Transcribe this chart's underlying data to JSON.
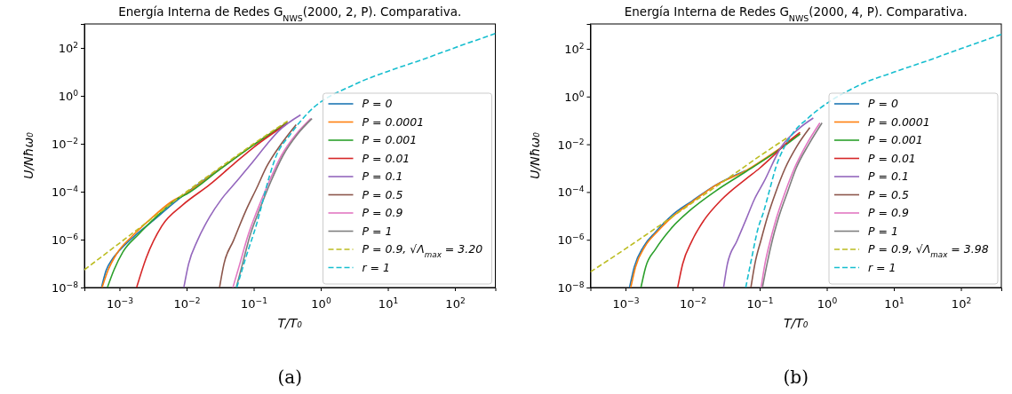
{
  "chart_data": [
    {
      "type": "line",
      "title": "Energía Interna de Redes G$_{NWS}$(2000, 2, P). Comparativa.",
      "xlabel": "T/T₀",
      "ylabel": "U/Nħω₀",
      "log": "xy",
      "grid": false,
      "legend": "right",
      "line_style": "solid",
      "marker": "none",
      "xlim": [
        0.0003,
        400
      ],
      "ylim": [
        1e-08,
        1000
      ],
      "xticks": [
        {
          "value": 0.001,
          "label": "10$^{−3}$"
        },
        {
          "value": 0.01,
          "label": "10$^{−2}$"
        },
        {
          "value": 0.1,
          "label": "10$^{−1}$"
        },
        {
          "value": 1,
          "label": "10$^{0}$"
        },
        {
          "value": 10,
          "label": "10$^{1}$"
        },
        {
          "value": 100,
          "label": "10$^{2}$"
        }
      ],
      "yticks": [
        {
          "value": 1e-08,
          "label": "10$^{−8}$"
        },
        {
          "value": 1e-06,
          "label": "10$^{−6}$"
        },
        {
          "value": 0.0001,
          "label": "10$^{−4}$"
        },
        {
          "value": 0.01,
          "label": "10$^{−2}$"
        },
        {
          "value": 1,
          "label": "10$^{0}$"
        },
        {
          "value": 100,
          "label": "10$^{2}$"
        }
      ],
      "annotations": [
        "(a)"
      ],
      "series": [
        {
          "name": "P = 0",
          "color": "#1f77b4",
          "x": [
            0.00054,
            0.00063,
            0.00079,
            0.001,
            0.0016,
            0.0032,
            0.0063,
            0.01,
            0.032
          ],
          "values": [
            1e-08,
            5e-08,
            1.6e-07,
            3.5e-07,
            1.26e-06,
            6.3e-06,
            3.2e-05,
            8.9e-05,
            0.00095
          ]
        },
        {
          "name": "P = 0.0001",
          "color": "#ff7f0e",
          "x": [
            0.00055,
            0.00068,
            0.00091,
            0.00155,
            0.0028,
            0.00575,
            0.01,
            0.032,
            0.1,
            0.32
          ],
          "values": [
            1e-08,
            5.5e-08,
            2.6e-07,
            1.4e-06,
            6.6e-06,
            3.6e-05,
            8.7e-05,
            0.00093,
            0.0091,
            0.079
          ]
        },
        {
          "name": "P = 0.001",
          "color": "#2ca02c",
          "x": [
            0.00066,
            0.00083,
            0.00112,
            0.0019,
            0.0035,
            0.0071,
            0.01,
            0.032,
            0.1,
            0.32
          ],
          "values": [
            1e-08,
            5.5e-08,
            3e-07,
            1.6e-06,
            8.7e-06,
            4.8e-05,
            7.9e-05,
            0.00089,
            0.0089,
            0.076
          ]
        },
        {
          "name": "P = 0.01",
          "color": "#d62728",
          "x": [
            0.0018,
            0.0025,
            0.0043,
            0.0087,
            0.022,
            0.05,
            0.1,
            0.32
          ],
          "values": [
            1e-08,
            1.7e-07,
            3.8e-06,
            2.75e-05,
            0.000195,
            0.0014,
            0.0071,
            0.071
          ]
        },
        {
          "name": "P = 0.1",
          "color": "#9467bd",
          "x": [
            0.0091,
            0.0107,
            0.0145,
            0.022,
            0.033,
            0.055,
            0.091,
            0.16,
            0.23,
            0.5
          ],
          "values": [
            1e-08,
            9.5e-08,
            9.1e-07,
            8.7e-06,
            4.8e-05,
            0.00026,
            0.0014,
            0.01,
            0.032,
            0.16
          ]
        },
        {
          "name": "P = 0.5",
          "color": "#8c564b",
          "x": [
            0.031,
            0.036,
            0.05,
            0.076,
            0.112,
            0.155,
            0.26,
            0.43
          ],
          "values": [
            1e-08,
            9.5e-08,
            9.1e-07,
            1.55e-05,
            0.00015,
            0.00107,
            0.0102,
            0.063
          ]
        },
        {
          "name": "P = 0.9",
          "color": "#e377c2",
          "x": [
            0.049,
            0.062,
            0.083,
            0.112,
            0.17,
            0.26,
            0.43,
            0.71
          ],
          "values": [
            1e-08,
            9.5e-08,
            1.6e-06,
            1.55e-05,
            0.00026,
            0.0033,
            0.025,
            0.112
          ]
        },
        {
          "name": "P = 1",
          "color": "#7f7f7f",
          "x": [
            0.055,
            0.068,
            0.089,
            0.12,
            0.18,
            0.275,
            0.45,
            0.74
          ],
          "values": [
            1e-08,
            9.5e-08,
            1.6e-06,
            1.55e-05,
            0.00026,
            0.0033,
            0.025,
            0.112
          ]
        },
        {
          "name": "P = 0.9, √Λ$_{max}$ = 3.20",
          "color": "#bcbd22",
          "line_style": "dashed",
          "x": [
            0.0003,
            0.001,
            0.0032,
            0.01,
            0.032,
            0.1,
            0.32
          ],
          "values": [
            5.5e-08,
            7.1e-07,
            8.5e-06,
            0.0001,
            0.00105,
            0.01,
            0.089
          ]
        },
        {
          "name": "r = 1",
          "color": "#17becf",
          "line_style": "dashed",
          "x": [
            0.056,
            0.076,
            0.112,
            0.17,
            0.21,
            0.35,
            0.63,
            3.2,
            10,
            32,
            100,
            400
          ],
          "values": [
            1e-08,
            1.7e-07,
            5e-06,
            0.0004,
            0.0025,
            0.024,
            0.18,
            3.0,
            10.5,
            32,
            102,
            400
          ]
        }
      ]
    },
    {
      "type": "line",
      "title": "Energía Interna de Redes G$_{NWS}$(2000, 4, P). Comparativa.",
      "xlabel": "T/T₀",
      "ylabel": "U/Nħω₀",
      "log": "xy",
      "grid": false,
      "legend": "right",
      "line_style": "solid",
      "marker": "none",
      "xlim": [
        0.0003,
        400
      ],
      "ylim": [
        1e-08,
        1100
      ],
      "xticks": [
        {
          "value": 0.001,
          "label": "10$^{−3}$"
        },
        {
          "value": 0.01,
          "label": "10$^{−2}$"
        },
        {
          "value": 0.1,
          "label": "10$^{−1}$"
        },
        {
          "value": 1,
          "label": "10$^{0}$"
        },
        {
          "value": 10,
          "label": "10$^{1}$"
        },
        {
          "value": 100,
          "label": "10$^{2}$"
        }
      ],
      "yticks": [
        {
          "value": 1e-08,
          "label": "10$^{−8}$"
        },
        {
          "value": 1e-06,
          "label": "10$^{−6}$"
        },
        {
          "value": 0.0001,
          "label": "10$^{−4}$"
        },
        {
          "value": 0.01,
          "label": "10$^{−2}$"
        },
        {
          "value": 1,
          "label": "10$^{0}$"
        },
        {
          "value": 100,
          "label": "10$^{2}$"
        }
      ],
      "annotations": [
        "(b)"
      ],
      "series": [
        {
          "name": "P = 0",
          "color": "#1f77b4",
          "x": [
            0.00115,
            0.00135,
            0.00186,
            0.0028,
            0.0052,
            0.0098,
            0.022,
            0.062
          ],
          "values": [
            1e-08,
            7.2e-08,
            5.2e-07,
            2.1e-06,
            1.2e-05,
            4.2e-05,
            0.000195,
            0.00079
          ]
        },
        {
          "name": "P = 0.0001",
          "color": "#ff7f0e",
          "x": [
            0.0012,
            0.00141,
            0.00195,
            0.00295,
            0.0054,
            0.01,
            0.022,
            0.062,
            0.17,
            0.4
          ],
          "values": [
            1e-08,
            7.2e-08,
            5.2e-07,
            2.1e-06,
            1.1e-05,
            4e-05,
            0.00019,
            0.00078,
            0.0049,
            0.028
          ]
        },
        {
          "name": "P = 0.001",
          "color": "#2ca02c",
          "x": [
            0.0017,
            0.002,
            0.0028,
            0.0047,
            0.0098,
            0.022,
            0.062,
            0.17,
            0.4
          ],
          "values": [
            1e-08,
            7.2e-08,
            4e-07,
            2.8e-06,
            2e-05,
            0.00011,
            0.00071,
            0.0045,
            0.027
          ]
        },
        {
          "name": "P = 0.01",
          "color": "#d62728",
          "x": [
            0.006,
            0.0071,
            0.0098,
            0.0148,
            0.027,
            0.062,
            0.1,
            0.158,
            0.25,
            0.4
          ],
          "values": [
            1e-08,
            9.5e-08,
            9.1e-07,
            6.6e-06,
            4.8e-05,
            0.00035,
            0.001,
            0.0032,
            0.0112,
            0.032
          ]
        },
        {
          "name": "P = 0.1",
          "color": "#9467bd",
          "x": [
            0.029,
            0.033,
            0.046,
            0.062,
            0.083,
            0.115,
            0.21,
            0.4,
            0.63
          ],
          "values": [
            1e-08,
            9.5e-08,
            9.1e-07,
            6.6e-06,
            4.8e-05,
            0.00026,
            0.0078,
            0.05,
            0.126
          ]
        },
        {
          "name": "P = 0.5",
          "color": "#8c564b",
          "x": [
            0.074,
            0.085,
            0.105,
            0.132,
            0.174,
            0.24,
            0.355,
            0.56
          ],
          "values": [
            1e-08,
            1e-07,
            1e-06,
            1e-05,
            0.0001,
            0.001,
            0.0079,
            0.05
          ]
        },
        {
          "name": "P = 0.9",
          "color": "#e377c2",
          "x": [
            0.105,
            0.12,
            0.145,
            0.182,
            0.24,
            0.33,
            0.5,
            0.79
          ],
          "values": [
            1e-08,
            1e-07,
            1e-06,
            1e-05,
            0.0001,
            0.001,
            0.01,
            0.079
          ]
        },
        {
          "name": "P = 1",
          "color": "#7f7f7f",
          "x": [
            0.11,
            0.129,
            0.155,
            0.195,
            0.26,
            0.35,
            0.54,
            0.85
          ],
          "values": [
            1e-08,
            1e-07,
            1e-06,
            1e-05,
            0.0001,
            0.001,
            0.01,
            0.079
          ]
        },
        {
          "name": "P = 0.9, √Λ$_{max}$ = 3.98",
          "color": "#bcbd22",
          "line_style": "dashed",
          "x": [
            0.0003,
            0.001,
            0.0032,
            0.01,
            0.032,
            0.1,
            0.25
          ],
          "values": [
            4.5e-08,
            4.2e-07,
            3.9e-06,
            3.6e-05,
            0.00034,
            0.0032,
            0.018
          ]
        },
        {
          "name": "r = 1",
          "color": "#17becf",
          "line_style": "dashed",
          "x": [
            0.062,
            0.076,
            0.093,
            0.115,
            0.141,
            0.174,
            0.234,
            0.32,
            0.5,
            3.2,
            10,
            32,
            100,
            400
          ],
          "values": [
            1e-08,
            1.7e-07,
            2.5e-06,
            1.55e-05,
            0.000126,
            0.00107,
            0.0078,
            0.032,
            0.11,
            3.2,
            10.5,
            32,
            102,
            400
          ]
        }
      ]
    }
  ]
}
